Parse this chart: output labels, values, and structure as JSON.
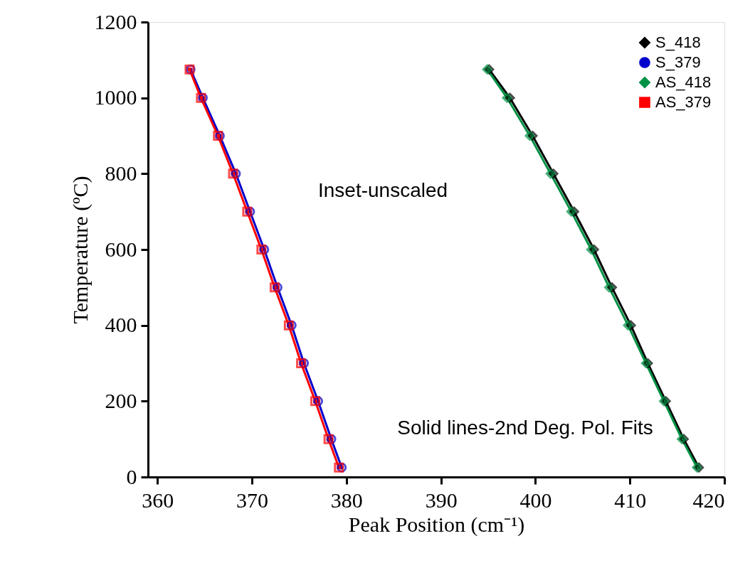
{
  "chart_data": {
    "type": "line",
    "xlabel": "Peak Position (cm⁻¹)",
    "ylabel": "Temperature (ºC)",
    "xlim": [
      359,
      420
    ],
    "xticks": [
      360,
      370,
      380,
      390,
      400,
      410,
      420
    ],
    "ylim": [
      0,
      1200
    ],
    "yticks": [
      0,
      200,
      400,
      600,
      800,
      {
        "value": 1000,
        "label": "1000"
      },
      {
        "value": 1200,
        "label": "1200"
      }
    ],
    "grid": false,
    "legend": "top right",
    "line_style": "solid",
    "series": [
      {
        "name": "S_418",
        "color": "#000000",
        "marker": "diamond",
        "x": [
          395.1,
          397.3,
          399.7,
          401.9,
          404.1,
          406.2,
          408.1,
          410.1,
          411.9,
          413.8,
          415.7,
          417.3
        ],
        "values": [
          1075,
          1000,
          900,
          800,
          700,
          600,
          500,
          400,
          300,
          200,
          100,
          25
        ]
      },
      {
        "name": "S_379",
        "color": "#0000cc",
        "marker": "circle",
        "x": [
          363.5,
          364.8,
          366.6,
          368.3,
          369.8,
          371.3,
          372.7,
          374.2,
          375.5,
          377.0,
          378.4,
          379.5
        ],
        "values": [
          1075,
          1000,
          900,
          800,
          700,
          600,
          500,
          400,
          300,
          200,
          100,
          25
        ]
      },
      {
        "name": "AS_418",
        "color": "#009245",
        "marker": "diamond",
        "x": [
          394.9,
          397.0,
          399.4,
          401.6,
          403.8,
          405.9,
          407.8,
          409.8,
          411.7,
          413.6,
          415.5,
          417.1
        ],
        "values": [
          1075,
          1000,
          900,
          800,
          700,
          600,
          500,
          400,
          300,
          200,
          100,
          25
        ]
      },
      {
        "name": "AS_379",
        "color": "#ff0000",
        "marker": "square",
        "x": [
          363.4,
          364.6,
          366.4,
          368.0,
          369.5,
          371.0,
          372.4,
          373.9,
          375.2,
          376.7,
          378.1,
          379.2
        ],
        "values": [
          1075,
          1000,
          900,
          800,
          700,
          600,
          500,
          400,
          300,
          200,
          100,
          25
        ]
      }
    ],
    "annotations": [
      "Inset-unscaled",
      "Solid lines-2nd Deg. Pol. Fits"
    ]
  }
}
